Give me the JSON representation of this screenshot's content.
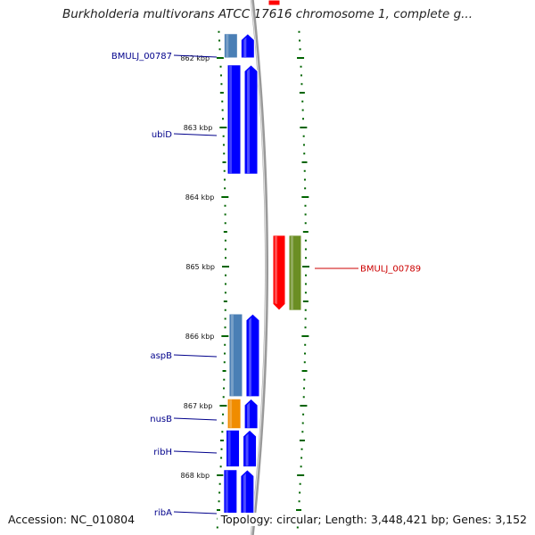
{
  "title": "Burkholderia multivorans ATCC 17616 chromosome 1, complete g...",
  "footer": {
    "accession": "Accession: NC_010804",
    "summary": "Topology: circular; Length: 3,448,421 bp; Genes: 3,152"
  },
  "colors": {
    "cds_forward": "#0000ff",
    "gene_forward": "#4a7fb5",
    "nusB_gene": "#f08c00",
    "cds_reverse": "#ff0000",
    "gene_reverse": "#6b8e23",
    "ticks": "#006400",
    "backbone": "#999999",
    "label_forward": "#00008b",
    "label_reverse": "#cc0000"
  },
  "axis": {
    "unit": "kbp",
    "ticks": [
      {
        "value": 862,
        "label": "862 kbp"
      },
      {
        "value": 863,
        "label": "863 kbp"
      },
      {
        "value": 864,
        "label": "864 kbp"
      },
      {
        "value": 865,
        "label": "865 kbp"
      },
      {
        "value": 866,
        "label": "866 kbp"
      },
      {
        "value": 867,
        "label": "867 kbp"
      },
      {
        "value": 868,
        "label": "868 kbp"
      }
    ]
  },
  "features": [
    {
      "label": "BMULJ_00787",
      "strand": "+",
      "start_kbp": 861.65,
      "end_kbp": 862.0,
      "gene_color": "#4a7fb5"
    },
    {
      "label": "ubiD",
      "strand": "+",
      "start_kbp": 862.1,
      "end_kbp": 863.67,
      "gene_color": "#0000ff"
    },
    {
      "label": "BMULJ_00789",
      "strand": "-",
      "start_kbp": 864.55,
      "end_kbp": 865.63,
      "gene_color": "#6b8e23"
    },
    {
      "label": "aspB",
      "strand": "+",
      "start_kbp": 865.68,
      "end_kbp": 866.87,
      "gene_color": "#4a7fb5"
    },
    {
      "label": "nusB",
      "strand": "+",
      "start_kbp": 866.9,
      "end_kbp": 867.33,
      "gene_color": "#f08c00"
    },
    {
      "label": "ribH",
      "strand": "+",
      "start_kbp": 867.35,
      "end_kbp": 867.88,
      "gene_color": "#0000ff"
    },
    {
      "label": "ribA",
      "strand": "+",
      "start_kbp": 867.92,
      "end_kbp": 868.7,
      "gene_color": "#0000ff"
    }
  ]
}
